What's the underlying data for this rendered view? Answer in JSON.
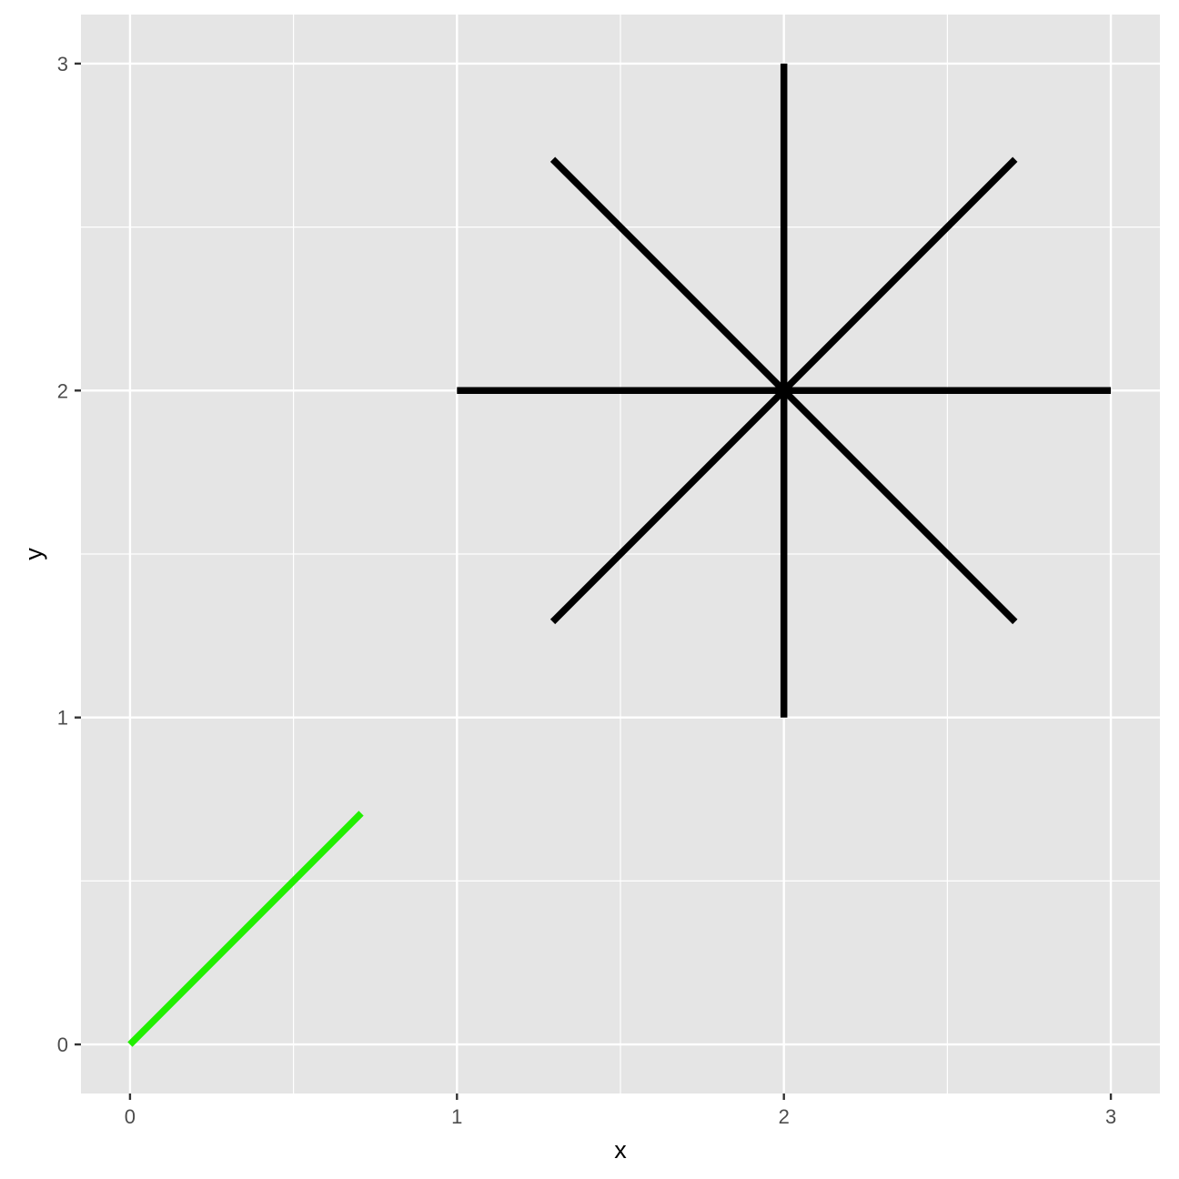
{
  "chart_data": {
    "type": "line",
    "title": "",
    "xlabel": "x",
    "ylabel": "y",
    "xlim": [
      -0.15,
      3.15
    ],
    "ylim": [
      -0.15,
      3.15
    ],
    "x_ticks": [
      0,
      1,
      2,
      3
    ],
    "y_ticks": [
      0,
      1,
      2,
      3
    ],
    "x_tick_labels": [
      "0",
      "1",
      "2",
      "3"
    ],
    "y_tick_labels": [
      "0",
      "1",
      "2",
      "3"
    ],
    "grid": true,
    "legend": "none",
    "segments": [
      {
        "group": "green",
        "x": [
          0,
          0.7071
        ],
        "y": [
          0,
          0.7071
        ]
      },
      {
        "group": "black",
        "x": [
          1,
          3
        ],
        "y": [
          2,
          2
        ]
      },
      {
        "group": "black",
        "x": [
          2,
          2
        ],
        "y": [
          1,
          3
        ]
      },
      {
        "group": "black",
        "x": [
          1.2929,
          2.7071
        ],
        "y": [
          1.2929,
          2.7071
        ]
      },
      {
        "group": "black",
        "x": [
          1.2929,
          2.7071
        ],
        "y": [
          2.7071,
          1.2929
        ]
      }
    ],
    "colors": {
      "green": "#22ee00",
      "black": "#000000",
      "panel": "#e5e5e5",
      "grid": "#ffffff",
      "tick": "#333333"
    }
  }
}
